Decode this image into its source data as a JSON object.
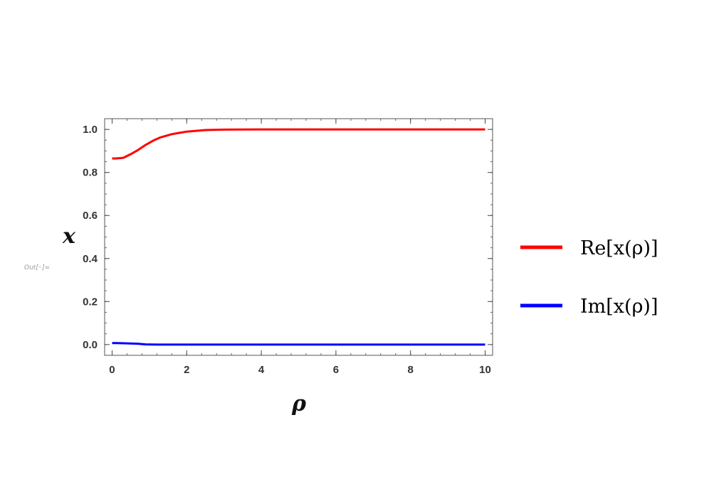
{
  "cell_label": "Out[◦]=",
  "chart_data": {
    "type": "line",
    "xlabel": "ρ",
    "ylabel": "x",
    "xlim": [
      -0.2,
      10.2
    ],
    "ylim": [
      -0.05,
      1.05
    ],
    "xticks": [
      0,
      2,
      4,
      6,
      8,
      10
    ],
    "xtick_labels": [
      "0",
      "2",
      "4",
      "6",
      "8",
      "10"
    ],
    "yticks": [
      0.0,
      0.2,
      0.4,
      0.6,
      0.8,
      1.0
    ],
    "ytick_labels": [
      "0.0",
      "0.2",
      "0.4",
      "0.6",
      "0.8",
      "1.0"
    ],
    "grid": false,
    "legend_position": "right",
    "series": [
      {
        "name": "Re[x(ρ)]",
        "color": "#ff0000",
        "x": [
          0,
          0.1,
          0.3,
          0.5,
          0.7,
          0.9,
          1.1,
          1.3,
          1.6,
          2.0,
          2.5,
          3.0,
          4.0,
          6.0,
          8.0,
          10.0
        ],
        "y": [
          0.865,
          0.865,
          0.868,
          0.885,
          0.905,
          0.928,
          0.948,
          0.963,
          0.978,
          0.99,
          0.997,
          0.999,
          1.0,
          1.0,
          1.0,
          1.0
        ]
      },
      {
        "name": "Im[x(ρ)]",
        "color": "#0000ff",
        "x": [
          0,
          0.1,
          0.3,
          0.5,
          0.7,
          0.9,
          1.2,
          2.0,
          4.0,
          6.0,
          8.0,
          10.0
        ],
        "y": [
          0.007,
          0.007,
          0.006,
          0.005,
          0.004,
          0.001,
          0.0,
          0.0,
          0.0,
          0.0,
          0.0,
          0.0
        ]
      }
    ]
  }
}
